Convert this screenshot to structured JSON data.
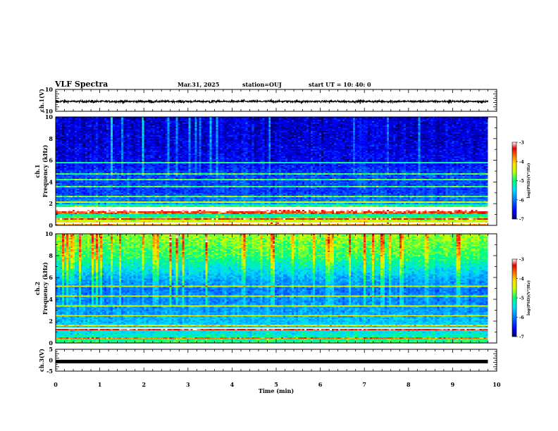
{
  "header": {
    "title": "VLF Spectra",
    "date": "Mar.31, 2025",
    "station": "station=OUJ",
    "start_ut": "start UT =   10: 40: 0"
  },
  "colors": {
    "spectrogram_scale": [
      "#00006e",
      "#0000ff",
      "#0078ff",
      "#00dcff",
      "#00ff78",
      "#c8ff00",
      "#ffe000",
      "#ff7800",
      "#e60000",
      "#ffffff"
    ],
    "waveform": "#000000"
  },
  "chart_data": [
    {
      "type": "line",
      "name": "ch1-waveform",
      "ylabel": "ch.1(V)",
      "ylim": [
        -10,
        10
      ],
      "yticks": [
        "10",
        "-10"
      ],
      "x_range_min": [
        0,
        10
      ],
      "data_end_min": 9.8,
      "series": [
        {
          "description": "continuous waveform",
          "baseline": 0,
          "amplitude_v": 1.5
        }
      ]
    },
    {
      "type": "heatmap",
      "name": "ch1-spectrogram",
      "ylabel": "ch.1",
      "ylabel2": "Frequency (kHz)",
      "ylim": [
        0,
        10
      ],
      "yticks": [
        "0",
        "2",
        "4",
        "6",
        "8",
        "10"
      ],
      "x_range_min": [
        0,
        10
      ],
      "data_end_min": 9.8,
      "colorbar": {
        "label": "log(PSD)(V²/Hz)",
        "range": [
          -7,
          -3
        ],
        "ticks": [
          "-3",
          "-4",
          "-5",
          "-6",
          "-7"
        ]
      },
      "profile_log_psd": [
        {
          "f": 0.25,
          "v": -4.2
        },
        {
          "f": 1.0,
          "v": -5.3
        },
        {
          "f": 1.5,
          "v": -4.0
        },
        {
          "f": 2.0,
          "v": -5.8
        },
        {
          "f": 3.0,
          "v": -6.3
        },
        {
          "f": 4.5,
          "v": -6.2
        },
        {
          "f": 6.0,
          "v": -6.6
        },
        {
          "f": 8.0,
          "v": -6.7
        },
        {
          "f": 10.0,
          "v": -6.7
        }
      ],
      "tones_khz": [
        0.25,
        0.6,
        1.1,
        1.3,
        1.55,
        2.2,
        2.7,
        3.6,
        4.25,
        4.75,
        5.8
      ],
      "strong_tone_khz": 1.55,
      "activity": "intermittent broadband bursts (sferics) concentrated above 5 kHz"
    },
    {
      "type": "heatmap",
      "name": "ch2-spectrogram",
      "ylabel": "ch.2",
      "ylabel2": "Frequency (kHz)",
      "ylim": [
        0,
        10
      ],
      "yticks": [
        "0",
        "2",
        "4",
        "6",
        "8",
        "10"
      ],
      "x_range_min": [
        0,
        10
      ],
      "data_end_min": 9.8,
      "colorbar": {
        "label": "log(PSD)(V²/Hz)",
        "range": [
          -7,
          -3
        ],
        "ticks": [
          "-3",
          "-4",
          "-5",
          "-6",
          "-7"
        ]
      },
      "profile_log_psd": [
        {
          "f": 0.25,
          "v": -5.0
        },
        {
          "f": 1.0,
          "v": -5.4
        },
        {
          "f": 2.0,
          "v": -5.6
        },
        {
          "f": 3.0,
          "v": -5.8
        },
        {
          "f": 5.0,
          "v": -6.0
        },
        {
          "f": 6.5,
          "v": -5.5
        },
        {
          "f": 8.0,
          "v": -4.9
        },
        {
          "f": 10.0,
          "v": -4.6
        }
      ],
      "tones_khz": [
        0.4,
        1.3,
        1.6,
        2.5,
        3.4,
        4.3,
        5.2
      ],
      "strong_tone_khz": 1.3,
      "activity": "strong broadband emission increasing toward 10 kHz with dense vertical sferic streaks"
    },
    {
      "type": "line",
      "name": "ch3-waveform",
      "ylabel": "ch.3(V)",
      "ylim": [
        -5,
        5
      ],
      "yticks": [
        "5",
        "0",
        "-5"
      ],
      "x_range_min": [
        0,
        10
      ],
      "data_end_min": 9.8,
      "series": [
        {
          "description": "near-constant offset",
          "value_v": -0.6
        }
      ]
    }
  ],
  "x_axis": {
    "label": "Time (min)",
    "ticks": [
      "0",
      "1",
      "2",
      "3",
      "4",
      "5",
      "6",
      "7",
      "8",
      "9",
      "10"
    ]
  }
}
